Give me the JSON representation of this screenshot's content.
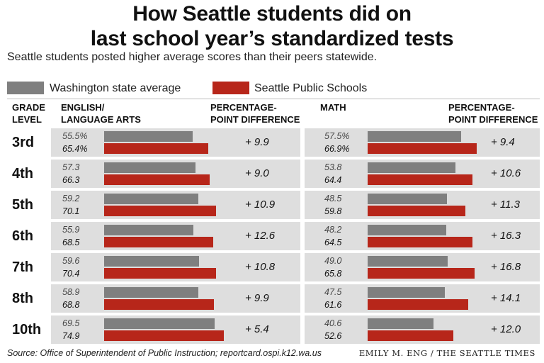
{
  "title_line1": "How Seattle students did on",
  "title_line2": "last school year’s standardized tests",
  "subtitle": "Seattle students posted higher average scores than their peers statewide.",
  "legend": {
    "state": {
      "label": "Washington state average",
      "color": "#7f7f7f"
    },
    "seattle": {
      "label": "Seattle Public Schools",
      "color": "#b7261a"
    }
  },
  "headers": {
    "grade_level": "GRADE LEVEL",
    "ela": "ENGLISH/ LANGUAGE ARTS",
    "ela_diff": "PERCENTAGE-POINT DIFFERENCE",
    "math": "MATH",
    "math_diff": "PERCENTAGE-POINT DIFFERENCE"
  },
  "chart_data": [
    {
      "type": "bar",
      "orientation": "horizontal",
      "title": "ENGLISH/ LANGUAGE ARTS",
      "categories": [
        "3rd",
        "4th",
        "5th",
        "6th",
        "7th",
        "8th",
        "10th"
      ],
      "series": [
        {
          "name": "Washington state average",
          "values": [
            55.5,
            57.3,
            59.2,
            55.9,
            59.6,
            58.9,
            69.5
          ],
          "labels": [
            "55.5%",
            "57.3",
            "59.2",
            "55.9",
            "59.6",
            "58.9",
            "69.5"
          ]
        },
        {
          "name": "Seattle Public Schools",
          "values": [
            65.4,
            66.3,
            70.1,
            68.5,
            70.4,
            68.8,
            74.9
          ],
          "labels": [
            "65.4%",
            "66.3",
            "70.1",
            "68.5",
            "70.4",
            "68.8",
            "74.9"
          ]
        }
      ],
      "difference_labels": [
        "+ 9.9",
        "+ 9.0",
        "+ 10.9",
        "+ 12.6",
        "+ 10.8",
        "+ 9.9",
        "+ 5.4"
      ]
    },
    {
      "type": "bar",
      "orientation": "horizontal",
      "title": "MATH",
      "categories": [
        "3rd",
        "4th",
        "5th",
        "6th",
        "7th",
        "8th",
        "10th"
      ],
      "series": [
        {
          "name": "Washington state average",
          "values": [
            57.5,
            53.8,
            48.5,
            48.2,
            49.0,
            47.5,
            40.6
          ],
          "labels": [
            "57.5%",
            "53.8",
            "48.5",
            "48.2",
            "49.0",
            "47.5",
            "40.6"
          ]
        },
        {
          "name": "Seattle Public Schools",
          "values": [
            66.9,
            64.4,
            59.8,
            64.5,
            65.8,
            61.6,
            52.6
          ],
          "labels": [
            "66.9%",
            "64.4",
            "59.8",
            "64.5",
            "65.8",
            "61.6",
            "52.6"
          ]
        }
      ],
      "difference_labels": [
        "+ 9.4",
        "+ 10.6",
        "+ 11.3",
        "+ 16.3",
        "+ 16.8",
        "+ 14.1",
        "+ 12.0"
      ]
    }
  ],
  "source": "Source: Office of Superintendent of Public Instruction; reportcard.ospi.k12.wa.us",
  "credit": "EMILY M. ENG / THE SEATTLE TIMES"
}
